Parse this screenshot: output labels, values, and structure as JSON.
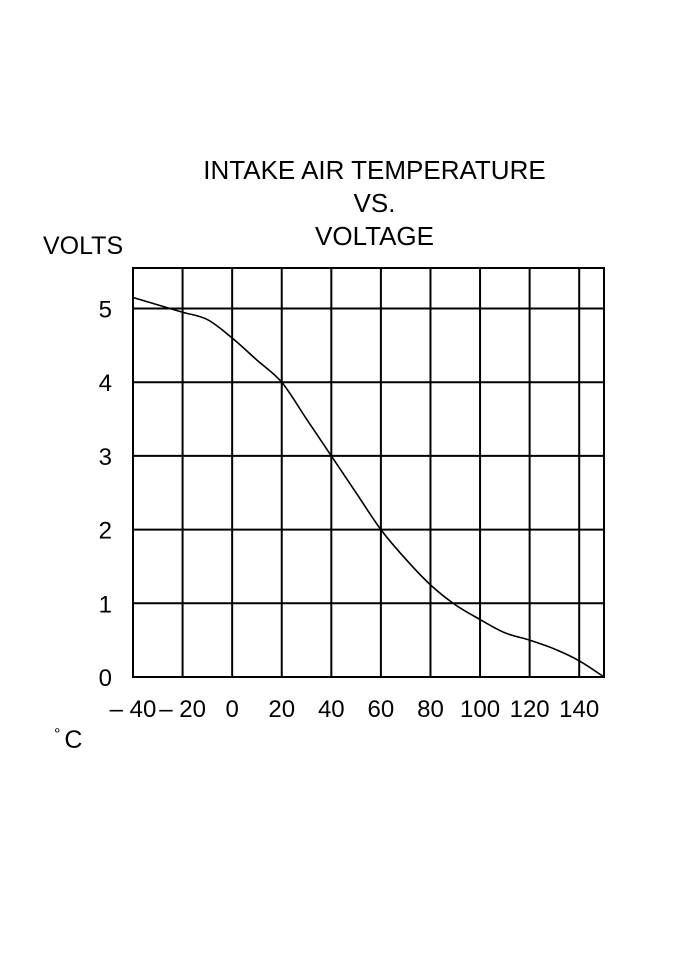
{
  "chart_data": {
    "type": "line",
    "title_lines": [
      "INTAKE AIR TEMPERATURE",
      "VS.",
      "VOLTAGE"
    ],
    "ylabel": "VOLTS",
    "xunit_degree": "°",
    "xunit_letter": "C",
    "xlim": [
      -40,
      150
    ],
    "ylim": [
      0,
      5.55
    ],
    "grid": true,
    "x_grid_values": [
      -40,
      -20,
      0,
      20,
      40,
      60,
      80,
      100,
      120,
      140
    ],
    "y_grid_values": [
      0,
      1,
      2,
      3,
      4,
      5
    ],
    "x_ticks": [
      {
        "value": -40,
        "label": "– 40"
      },
      {
        "value": -20,
        "label": "– 20"
      },
      {
        "value": 0,
        "label": "0"
      },
      {
        "value": 20,
        "label": "20"
      },
      {
        "value": 40,
        "label": "40"
      },
      {
        "value": 60,
        "label": "60"
      },
      {
        "value": 80,
        "label": "80"
      },
      {
        "value": 100,
        "label": "100"
      },
      {
        "value": 120,
        "label": "120"
      },
      {
        "value": 140,
        "label": "140"
      }
    ],
    "y_ticks": [
      {
        "value": 0,
        "label": "0"
      },
      {
        "value": 1,
        "label": "1"
      },
      {
        "value": 2,
        "label": "2"
      },
      {
        "value": 3,
        "label": "3"
      },
      {
        "value": 4,
        "label": "4"
      },
      {
        "value": 5,
        "label": "5"
      }
    ],
    "series": [
      {
        "x": [
          -40,
          -30,
          -20,
          -10,
          0,
          10,
          20,
          30,
          40,
          50,
          60,
          70,
          80,
          90,
          100,
          110,
          120,
          130,
          140,
          150
        ],
        "y": [
          5.15,
          5.05,
          4.95,
          4.85,
          4.6,
          4.3,
          4.0,
          3.5,
          3.0,
          2.5,
          2.0,
          1.6,
          1.25,
          0.98,
          0.78,
          0.6,
          0.5,
          0.38,
          0.22,
          0.0
        ]
      }
    ]
  }
}
